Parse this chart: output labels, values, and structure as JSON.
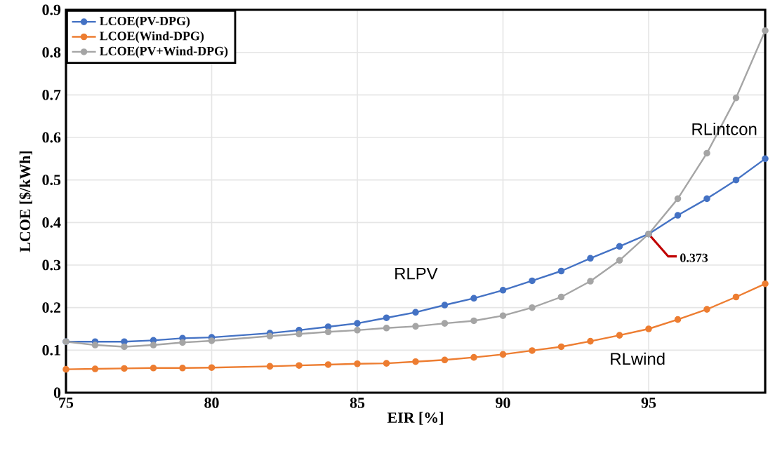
{
  "chart_data": {
    "type": "line",
    "xlabel": "EIR [%]",
    "ylabel": "LCOE [$/kWh]",
    "x": [
      75,
      76,
      77,
      78,
      79,
      80,
      82,
      83,
      84,
      85,
      86,
      87,
      88,
      89,
      90,
      91,
      92,
      93,
      94,
      95,
      96,
      97,
      98,
      99
    ],
    "series": [
      {
        "name": "LCOE(PV-DPG)",
        "color": "#4472c4",
        "values": [
          0.12,
          0.12,
          0.12,
          0.123,
          0.128,
          0.13,
          0.14,
          0.147,
          0.155,
          0.163,
          0.176,
          0.189,
          0.206,
          0.222,
          0.241,
          0.263,
          0.286,
          0.316,
          0.344,
          0.373,
          0.417,
          0.456,
          0.5,
          0.55
        ]
      },
      {
        "name": "LCOE(Wind-DPG)",
        "color": "#ed7d31",
        "values": [
          0.055,
          0.056,
          0.057,
          0.058,
          0.058,
          0.059,
          0.062,
          0.064,
          0.066,
          0.068,
          0.069,
          0.073,
          0.077,
          0.083,
          0.09,
          0.099,
          0.108,
          0.121,
          0.135,
          0.15,
          0.172,
          0.196,
          0.225,
          0.256
        ]
      },
      {
        "name": "LCOE(PV+Wind-DPG)",
        "color": "#a5a5a5",
        "values": [
          0.12,
          0.112,
          0.108,
          0.112,
          0.118,
          0.122,
          0.133,
          0.138,
          0.143,
          0.147,
          0.152,
          0.156,
          0.163,
          0.169,
          0.181,
          0.2,
          0.225,
          0.262,
          0.311,
          0.373,
          0.456,
          0.563,
          0.693,
          0.851
        ]
      }
    ],
    "annotations": [
      "RLPV",
      "RLintcon",
      "RLwind",
      {
        "text": "0.373",
        "x": 95,
        "y": 0.373
      }
    ],
    "xlim": [
      75,
      99
    ],
    "xticks": [
      75,
      80,
      85,
      90,
      95
    ],
    "ylim": [
      0,
      0.9
    ],
    "yticks": [
      0,
      0.1,
      0.2,
      0.3,
      0.4,
      0.5,
      0.6,
      0.7,
      0.8,
      0.9
    ],
    "grid": true,
    "legend": "top left",
    "marker": "circle",
    "line_style": "solid"
  }
}
